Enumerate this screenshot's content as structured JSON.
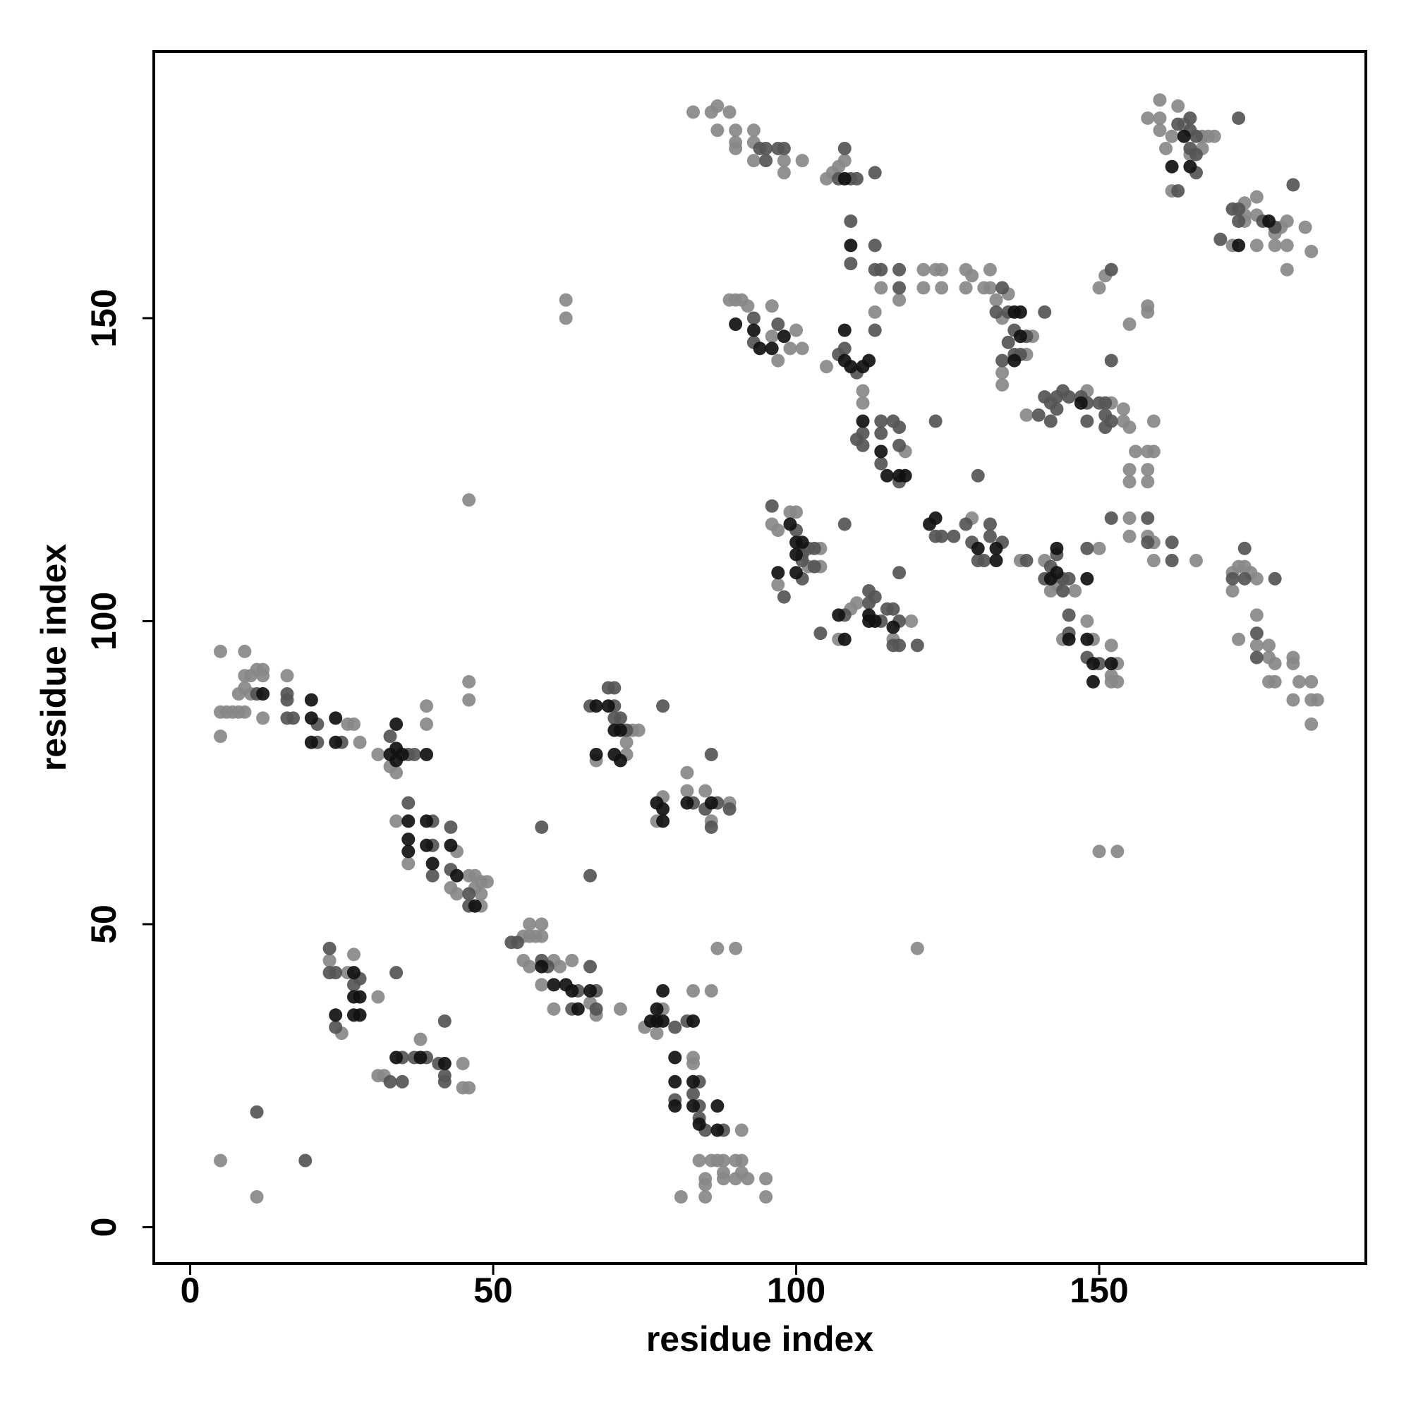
{
  "chart_data": {
    "type": "scatter",
    "x_label": "residue index",
    "y_label": "residue index",
    "xlim": [
      -6,
      194
    ],
    "ylim": [
      -6,
      194
    ],
    "xticks": [
      0,
      50,
      100,
      150
    ],
    "yticks": [
      0,
      50,
      100,
      150
    ],
    "series": [
      {
        "color": "#888888",
        "x": [
          5,
          9,
          5,
          6,
          7,
          8,
          9,
          5,
          8,
          9,
          10,
          9,
          11,
          12,
          12,
          10,
          12,
          16,
          26,
          27,
          28,
          31,
          34,
          39,
          39,
          33,
          36,
          34,
          44,
          43,
          44,
          46,
          47,
          48,
          48,
          49,
          48,
          47,
          55,
          56,
          57,
          56,
          58,
          58,
          55,
          56,
          60,
          61,
          58,
          63,
          60,
          67,
          71,
          66,
          78,
          77,
          75,
          83,
          83,
          91,
          84,
          86,
          87,
          88,
          90,
          91,
          85,
          85,
          85,
          88,
          88,
          90,
          91,
          92,
          95,
          95,
          81,
          83,
          86,
          23,
          26,
          27,
          25,
          31,
          31,
          32,
          38,
          45,
          45,
          46,
          5,
          11,
          46,
          46,
          46,
          62,
          62,
          87,
          90,
          120,
          150,
          153,
          73,
          74,
          72,
          67,
          72,
          77,
          78,
          82,
          82,
          85,
          86,
          89,
          83,
          86,
          87,
          89,
          87,
          90,
          93,
          90,
          90,
          93,
          93,
          98,
          101,
          98,
          105,
          106,
          107,
          108,
          114,
          117,
          89,
          90,
          91,
          92,
          96,
          96,
          99,
          97,
          100,
          101,
          105,
          111,
          111,
          113,
          118,
          96,
          97,
          99,
          100,
          104,
          97,
          102,
          104,
          109,
          110,
          107,
          116,
          119,
          129,
          137,
          141,
          146,
          143,
          150,
          142,
          144,
          148,
          149,
          152,
          152,
          152,
          153,
          153,
          121,
          123,
          124,
          121,
          124,
          128,
          128,
          129,
          131,
          132,
          132,
          133,
          134,
          135,
          139,
          138,
          134,
          134,
          138,
          148,
          152,
          154,
          154,
          155,
          156,
          158,
          159,
          155,
          155,
          158,
          158,
          159,
          150,
          151,
          155,
          158,
          158,
          155,
          155,
          158,
          159,
          159,
          166,
          172,
          172,
          173,
          174,
          175,
          176,
          176,
          176,
          173,
          178,
          178,
          179,
          178,
          179,
          182,
          182,
          183,
          185,
          182,
          185,
          186,
          185,
          160,
          158,
          160,
          160,
          162,
          161,
          163,
          164,
          167,
          168,
          169,
          165,
          167,
          162,
          174,
          174,
          174,
          176,
          176,
          176,
          179,
          179,
          180,
          181,
          181,
          181,
          184,
          185,
          172
        ],
        "values": [
          95,
          95,
          85,
          85,
          85,
          85,
          85,
          81,
          88,
          89,
          91,
          91,
          92,
          92,
          91,
          88,
          84,
          91,
          83,
          83,
          80,
          78,
          75,
          86,
          83,
          76,
          60,
          67,
          62,
          56,
          55,
          58,
          58,
          55,
          57,
          57,
          53,
          56,
          48,
          48,
          48,
          50,
          50,
          48,
          44,
          43,
          44,
          43,
          40,
          44,
          36,
          35,
          36,
          37,
          36,
          32,
          33,
          28,
          27,
          16,
          11,
          11,
          11,
          11,
          11,
          11,
          8,
          7,
          5,
          9,
          8,
          8,
          9,
          8,
          8,
          5,
          5,
          39,
          39,
          44,
          42,
          45,
          32,
          38,
          25,
          25,
          31,
          27,
          23,
          23,
          11,
          5,
          120,
          90,
          87,
          153,
          150,
          46,
          46,
          46,
          62,
          62,
          82,
          82,
          80,
          77,
          78,
          67,
          71,
          75,
          72,
          72,
          67,
          70,
          184,
          184,
          185,
          184,
          181,
          181,
          181,
          179,
          178,
          179,
          176,
          176,
          176,
          174,
          173,
          174,
          175,
          176,
          155,
          153,
          153,
          153,
          153,
          152,
          152,
          147,
          145,
          143,
          148,
          145,
          142,
          138,
          136,
          151,
          128,
          116,
          115,
          118,
          118,
          112,
          106,
          109,
          109,
          102,
          103,
          97,
          97,
          100,
          117,
          110,
          110,
          105,
          106,
          112,
          105,
          97,
          100,
          97,
          96,
          91,
          90,
          90,
          93,
          158,
          158,
          158,
          155,
          155,
          158,
          155,
          157,
          155,
          155,
          158,
          153,
          150,
          154,
          147,
          144,
          141,
          139,
          134,
          138,
          136,
          135,
          133,
          132,
          128,
          128,
          128,
          125,
          123,
          125,
          123,
          133,
          155,
          157,
          149,
          151,
          152,
          117,
          114,
          114,
          113,
          110,
          110,
          108,
          105,
          109,
          109,
          108,
          107,
          101,
          96,
          97,
          96,
          94,
          93,
          90,
          90,
          94,
          93,
          90,
          90,
          87,
          87,
          87,
          83,
          186,
          183,
          183,
          181,
          180,
          178,
          185,
          182,
          180,
          180,
          180,
          177,
          178,
          171,
          169,
          166,
          167,
          170,
          167,
          162,
          164,
          162,
          165,
          166,
          162,
          158,
          165,
          161,
          162
        ]
      },
      {
        "color": "#555555",
        "x": [
          11,
          16,
          16,
          17,
          16,
          21,
          21,
          25,
          33,
          36,
          37,
          36,
          40,
          40,
          40,
          43,
          43,
          46,
          46,
          53,
          54,
          58,
          59,
          64,
          66,
          67,
          63,
          67,
          80,
          82,
          84,
          83,
          80,
          84,
          84,
          85,
          88,
          23,
          23,
          24,
          28,
          27,
          24,
          34,
          33,
          35,
          35,
          37,
          39,
          41,
          42,
          42,
          42,
          11,
          19,
          58,
          66,
          66,
          69,
          70,
          70,
          70,
          71,
          72,
          78,
          83,
          85,
          86,
          87,
          89,
          86,
          94,
          95,
          97,
          98,
          95,
          107,
          109,
          110,
          108,
          113,
          109,
          113,
          109,
          113,
          114,
          117,
          117,
          93,
          97,
          93,
          107,
          108,
          110,
          113,
          111,
          111,
          114,
          114,
          114,
          116,
          117,
          117,
          117,
          110,
          96,
          100,
          101,
          102,
          103,
          98,
          101,
          103,
          101,
          108,
          104,
          108,
          112,
          112,
          113,
          114,
          115,
          116,
          116,
          117,
          117,
          117,
          120,
          123,
          124,
          126,
          128,
          129,
          130,
          132,
          132,
          131,
          134,
          138,
          142,
          141,
          144,
          143,
          145,
          144,
          148,
          145,
          145,
          148,
          150,
          134,
          133,
          135,
          136,
          138,
          134,
          137,
          135,
          141,
          136,
          140,
          141,
          142,
          142,
          143,
          144,
          143,
          145,
          147,
          148,
          148,
          150,
          151,
          151,
          151,
          152,
          152,
          152,
          123,
          130,
          152,
          158,
          158,
          162,
          162,
          172,
          174,
          174,
          179,
          176,
          176,
          163,
          165,
          165,
          165,
          166,
          166,
          166,
          163,
          173,
          170,
          172,
          173,
          173,
          177,
          179,
          182
        ],
        "values": [
          88,
          88,
          87,
          84,
          84,
          83,
          80,
          80,
          81,
          78,
          78,
          70,
          67,
          63,
          58,
          66,
          59,
          55,
          53,
          47,
          47,
          44,
          43,
          39,
          43,
          39,
          36,
          36,
          33,
          34,
          24,
          22,
          21,
          20,
          18,
          16,
          16,
          46,
          42,
          42,
          41,
          40,
          33,
          42,
          24,
          24,
          28,
          28,
          28,
          27,
          24,
          25,
          34,
          19,
          11,
          66,
          58,
          86,
          89,
          89,
          86,
          84,
          84,
          82,
          86,
          70,
          69,
          66,
          70,
          69,
          78,
          178,
          178,
          178,
          178,
          176,
          173,
          173,
          173,
          178,
          174,
          166,
          162,
          159,
          158,
          158,
          158,
          155,
          150,
          149,
          146,
          144,
          145,
          141,
          148,
          131,
          129,
          133,
          131,
          126,
          133,
          129,
          132,
          123,
          130,
          119,
          115,
          111,
          112,
          112,
          104,
          107,
          109,
          110,
          116,
          98,
          101,
          103,
          105,
          104,
          100,
          102,
          102,
          96,
          100,
          96,
          108,
          96,
          114,
          114,
          114,
          116,
          113,
          110,
          114,
          116,
          110,
          113,
          110,
          109,
          107,
          107,
          111,
          107,
          105,
          112,
          101,
          98,
          94,
          93,
          155,
          151,
          151,
          148,
          147,
          143,
          144,
          146,
          151,
          144,
          134,
          137,
          136,
          133,
          137,
          138,
          135,
          137,
          137,
          136,
          133,
          136,
          136,
          134,
          132,
          133,
          143,
          158,
          133,
          124,
          117,
          117,
          113,
          113,
          110,
          107,
          112,
          107,
          107,
          98,
          94,
          182,
          183,
          181,
          178,
          180,
          177,
          174,
          171,
          183,
          163,
          168,
          168,
          166,
          166,
          165,
          172
        ]
      },
      {
        "color": "#111111",
        "x": [
          12,
          20,
          20,
          20,
          24,
          24,
          34,
          34,
          35,
          33,
          34,
          39,
          36,
          36,
          36,
          39,
          39,
          40,
          43,
          44,
          47,
          58,
          60,
          62,
          63,
          66,
          64,
          78,
          77,
          78,
          77,
          76,
          83,
          80,
          80,
          83,
          80,
          83,
          84,
          87,
          87,
          27,
          27,
          28,
          27,
          28,
          24,
          34,
          38,
          42,
          67,
          69,
          70,
          71,
          67,
          70,
          71,
          77,
          78,
          78,
          82,
          86,
          108,
          109,
          90,
          93,
          98,
          94,
          96,
          108,
          109,
          111,
          108,
          112,
          111,
          114,
          115,
          117,
          118,
          99,
          100,
          101,
          100,
          97,
          100,
          107,
          108,
          112,
          113,
          112,
          116,
          122,
          123,
          130,
          133,
          133,
          142,
          143,
          143,
          148,
          145,
          148,
          149,
          149,
          152,
          136,
          137,
          137,
          136,
          147,
          164,
          162,
          165,
          173,
          178
        ],
        "values": [
          88,
          87,
          84,
          80,
          84,
          80,
          83,
          79,
          78,
          78,
          77,
          78,
          67,
          64,
          62,
          67,
          63,
          60,
          63,
          58,
          53,
          43,
          40,
          40,
          39,
          39,
          36,
          39,
          36,
          34,
          34,
          34,
          34,
          28,
          24,
          24,
          20,
          20,
          17,
          20,
          16,
          42,
          38,
          38,
          35,
          35,
          35,
          28,
          28,
          27,
          86,
          86,
          82,
          82,
          78,
          78,
          77,
          70,
          69,
          67,
          70,
          70,
          173,
          162,
          149,
          148,
          147,
          145,
          145,
          143,
          142,
          142,
          148,
          143,
          133,
          128,
          124,
          124,
          124,
          116,
          113,
          113,
          111,
          108,
          108,
          101,
          97,
          101,
          100,
          100,
          99,
          116,
          117,
          112,
          112,
          110,
          107,
          108,
          112,
          107,
          97,
          97,
          93,
          90,
          93,
          151,
          151,
          147,
          143,
          136,
          180,
          175,
          175,
          162,
          166
        ]
      }
    ]
  }
}
